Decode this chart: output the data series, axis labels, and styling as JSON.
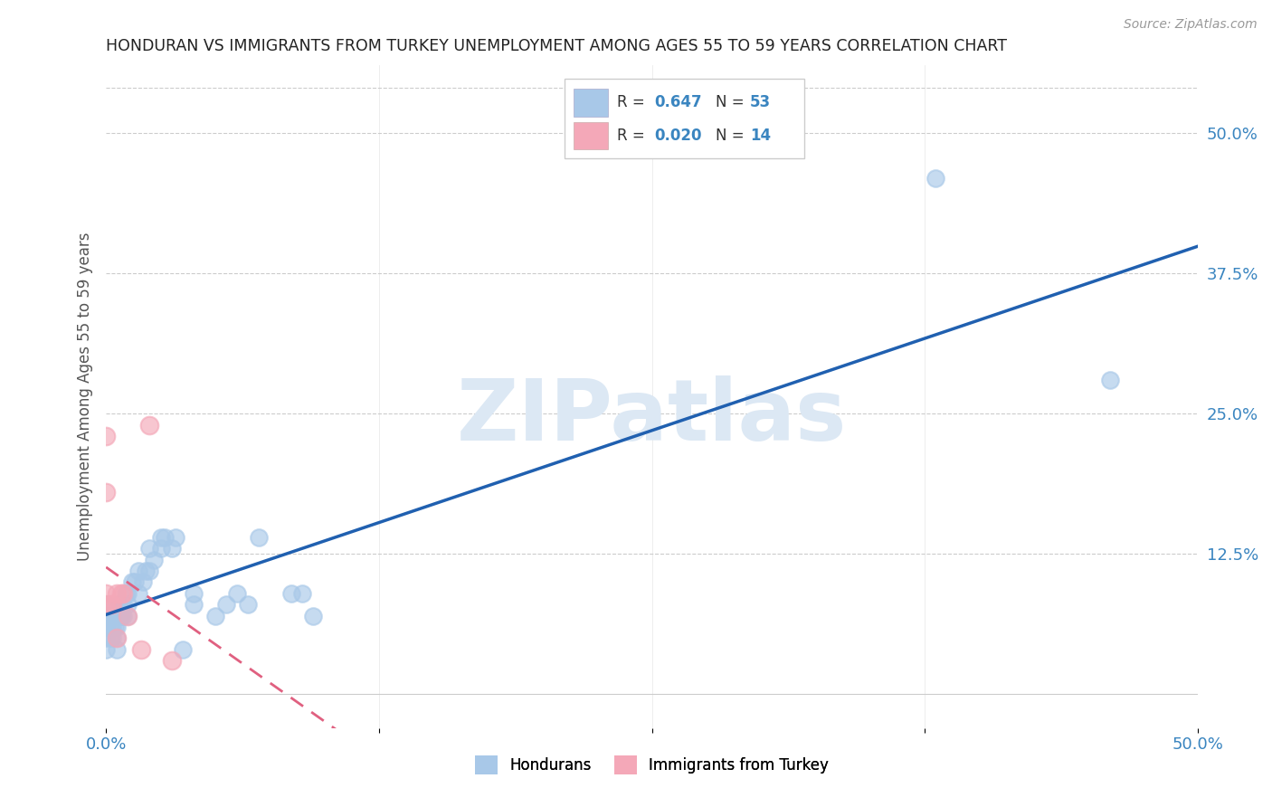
{
  "title": "HONDURAN VS IMMIGRANTS FROM TURKEY UNEMPLOYMENT AMONG AGES 55 TO 59 YEARS CORRELATION CHART",
  "source": "Source: ZipAtlas.com",
  "ylabel": "Unemployment Among Ages 55 to 59 years",
  "xlim": [
    0.0,
    0.5
  ],
  "ylim": [
    -0.03,
    0.56
  ],
  "color_blue": "#a8c8e8",
  "color_pink": "#f4a8b8",
  "color_blue_line": "#2060b0",
  "color_pink_line": "#e06080",
  "watermark": "ZIPatlas",
  "watermark_color": "#dce8f4",
  "honduran_x": [
    0.0,
    0.0,
    0.0,
    0.0,
    0.0,
    0.002,
    0.002,
    0.002,
    0.003,
    0.003,
    0.003,
    0.004,
    0.004,
    0.005,
    0.005,
    0.005,
    0.006,
    0.006,
    0.007,
    0.007,
    0.008,
    0.008,
    0.009,
    0.01,
    0.01,
    0.01,
    0.012,
    0.013,
    0.015,
    0.015,
    0.017,
    0.018,
    0.02,
    0.02,
    0.022,
    0.025,
    0.025,
    0.027,
    0.03,
    0.032,
    0.035,
    0.04,
    0.04,
    0.05,
    0.055,
    0.06,
    0.065,
    0.07,
    0.085,
    0.09,
    0.095,
    0.38,
    0.46
  ],
  "honduran_y": [
    0.04,
    0.05,
    0.06,
    0.07,
    0.08,
    0.05,
    0.06,
    0.07,
    0.05,
    0.06,
    0.07,
    0.06,
    0.07,
    0.04,
    0.05,
    0.06,
    0.07,
    0.08,
    0.07,
    0.08,
    0.07,
    0.08,
    0.09,
    0.07,
    0.08,
    0.09,
    0.1,
    0.1,
    0.09,
    0.11,
    0.1,
    0.11,
    0.13,
    0.11,
    0.12,
    0.13,
    0.14,
    0.14,
    0.13,
    0.14,
    0.04,
    0.08,
    0.09,
    0.07,
    0.08,
    0.09,
    0.08,
    0.14,
    0.09,
    0.09,
    0.07,
    0.46,
    0.28
  ],
  "turkey_x": [
    0.0,
    0.0,
    0.0,
    0.0,
    0.002,
    0.003,
    0.005,
    0.005,
    0.007,
    0.008,
    0.01,
    0.016,
    0.02,
    0.03
  ],
  "turkey_y": [
    0.08,
    0.09,
    0.18,
    0.23,
    0.08,
    0.08,
    0.09,
    0.05,
    0.09,
    0.09,
    0.07,
    0.04,
    0.24,
    0.03
  ]
}
